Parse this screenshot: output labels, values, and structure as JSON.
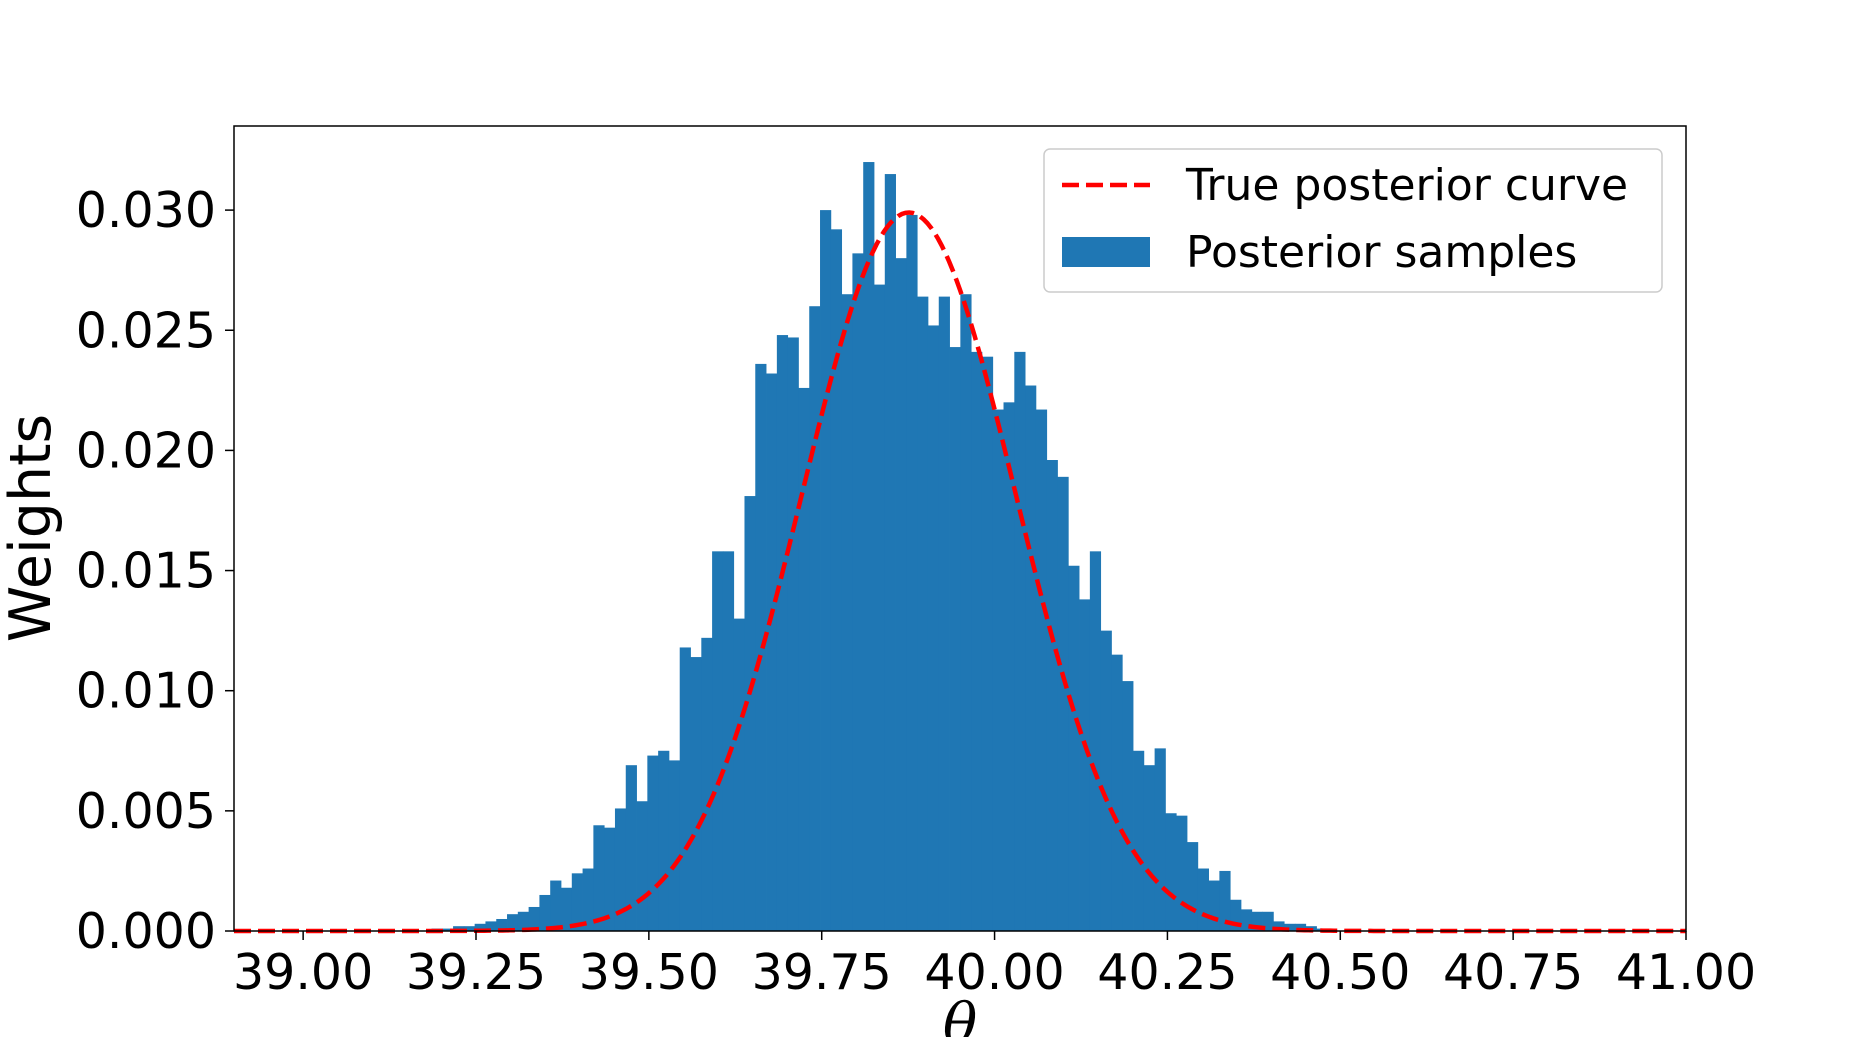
{
  "chart_data": {
    "type": "bar",
    "xlabel": "θ",
    "ylabel": "Weights",
    "xlim": [
      38.9,
      41.0
    ],
    "ylim": [
      0,
      0.0335
    ],
    "x_ticks": [
      "39.00",
      "39.25",
      "39.50",
      "39.75",
      "40.00",
      "40.25",
      "40.50",
      "40.75",
      "41.00"
    ],
    "y_ticks": [
      "0.000",
      "0.005",
      "0.010",
      "0.015",
      "0.020",
      "0.025",
      "0.030"
    ],
    "legend_position": "top-right",
    "legend": [
      "True posterior curve",
      "Posterior samples"
    ],
    "curve": {
      "name": "True posterior curve",
      "style": "dashed",
      "color": "#ff0000",
      "mean": 39.876,
      "peak": 0.0299,
      "sd": 0.155
    },
    "histogram": {
      "name": "Posterior samples",
      "color": "#1f77b4",
      "bin_start": 39.17,
      "bin_width": 0.01561,
      "weights": [
        0.0,
        0.0001,
        0.0001,
        0.0002,
        0.0002,
        0.0003,
        0.0004,
        0.0005,
        0.0007,
        0.0008,
        0.001,
        0.0015,
        0.0021,
        0.0018,
        0.0024,
        0.0026,
        0.0044,
        0.0043,
        0.0051,
        0.0069,
        0.0054,
        0.0073,
        0.0075,
        0.0071,
        0.0118,
        0.0114,
        0.0122,
        0.0158,
        0.0158,
        0.013,
        0.0181,
        0.0236,
        0.0232,
        0.0248,
        0.0247,
        0.0226,
        0.026,
        0.03,
        0.0292,
        0.0265,
        0.0282,
        0.032,
        0.0269,
        0.0315,
        0.028,
        0.0298,
        0.0264,
        0.0252,
        0.0264,
        0.0243,
        0.0265,
        0.0241,
        0.0239,
        0.0217,
        0.022,
        0.0241,
        0.0227,
        0.0217,
        0.0196,
        0.0189,
        0.0152,
        0.0138,
        0.0158,
        0.0125,
        0.0115,
        0.0104,
        0.0075,
        0.0069,
        0.0076,
        0.0049,
        0.0048,
        0.0037,
        0.0026,
        0.0021,
        0.0025,
        0.0013,
        0.0009,
        0.0008,
        0.0008,
        0.0004,
        0.0003,
        0.0003,
        0.0002,
        0.0001,
        0.0
      ]
    }
  }
}
